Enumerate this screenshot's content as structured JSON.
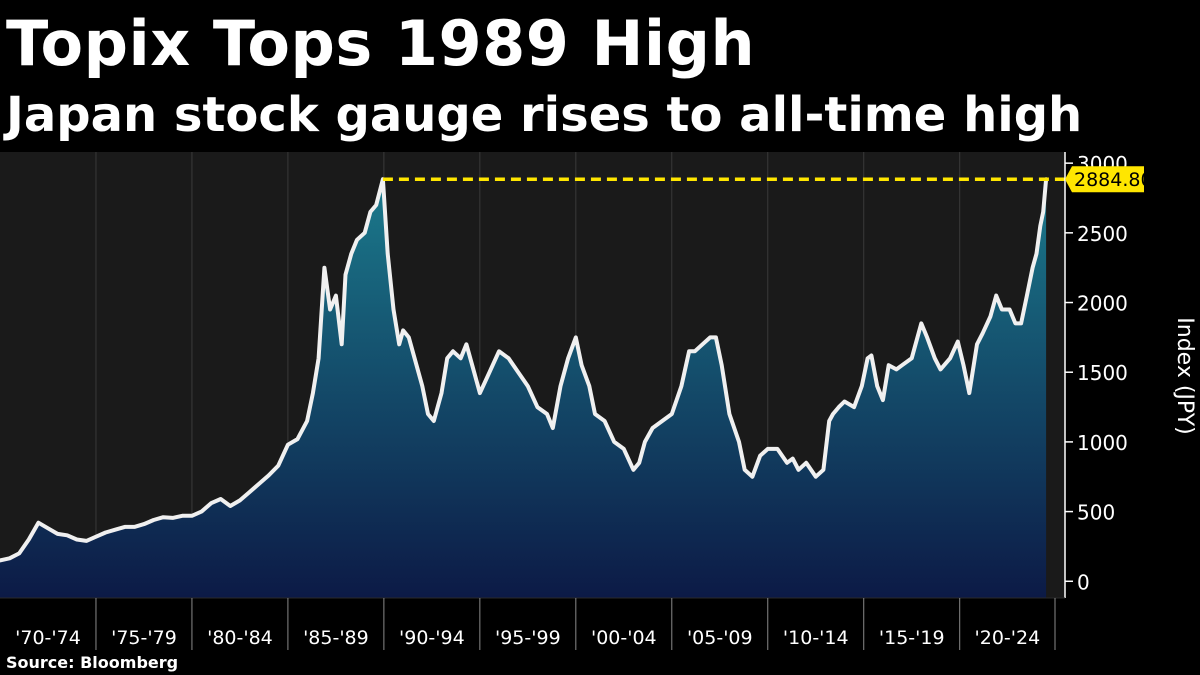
{
  "header": {
    "title": "Topix Tops 1989 High",
    "subtitle": "Japan stock gauge rises to all-time high"
  },
  "footer": {
    "source": "Source: Bloomberg"
  },
  "colors": {
    "background": "#000000",
    "plot_background": "#1a1a1a",
    "line": "#f0f0f0",
    "area_top": "#1b7a8c",
    "area_bottom": "#0c1a46",
    "highlight": "#ffe600",
    "grid": "#555555"
  },
  "chart_data": {
    "type": "area",
    "title": "Topix Tops 1989 High",
    "subtitle": "Japan stock gauge rises to all-time high",
    "xlabel": "",
    "ylabel": "Index (JPY)",
    "ylim": [
      -120,
      3080
    ],
    "xlim": [
      1970.0,
      2024.6
    ],
    "yticks": [
      0,
      500,
      1000,
      1500,
      2000,
      2500,
      3000
    ],
    "ytick_labels": [
      "0",
      "500",
      "1000",
      "1500",
      "2000",
      "2500",
      "3000"
    ],
    "x_categories": [
      "'70-'74",
      "'75-'79",
      "'80-'84",
      "'85-'89",
      "'90-'94",
      "'95-'99",
      "'00-'04",
      "'05-'09",
      "'10-'14",
      "'15-'19",
      "'20-'24"
    ],
    "x_category_start_years": [
      1970,
      1975,
      1980,
      1985,
      1990,
      1995,
      2000,
      2005,
      2010,
      2015,
      2020
    ],
    "reference_line": {
      "value": 2884.8,
      "from_year": 1989.95,
      "label": "2884.80",
      "style": "dashed"
    },
    "last_value_label": "2884.80",
    "series": [
      {
        "name": "Topix",
        "x": [
          1970.0,
          1970.5,
          1971.0,
          1971.5,
          1972.0,
          1972.5,
          1973.0,
          1973.5,
          1974.0,
          1974.5,
          1975.0,
          1975.5,
          1976.0,
          1976.5,
          1977.0,
          1977.5,
          1978.0,
          1978.5,
          1979.0,
          1979.5,
          1980.0,
          1980.5,
          1981.0,
          1981.5,
          1982.0,
          1982.5,
          1983.0,
          1983.5,
          1984.0,
          1984.5,
          1985.0,
          1985.5,
          1986.0,
          1986.3,
          1986.6,
          1986.9,
          1987.2,
          1987.5,
          1987.8,
          1988.0,
          1988.3,
          1988.6,
          1989.0,
          1989.3,
          1989.6,
          1989.95,
          1990.2,
          1990.5,
          1990.8,
          1991.0,
          1991.3,
          1991.6,
          1992.0,
          1992.3,
          1992.6,
          1993.0,
          1993.3,
          1993.6,
          1994.0,
          1994.3,
          1994.6,
          1995.0,
          1995.5,
          1996.0,
          1996.5,
          1997.0,
          1997.5,
          1998.0,
          1998.5,
          1998.8,
          1999.2,
          1999.6,
          2000.0,
          2000.3,
          2000.7,
          2001.0,
          2001.5,
          2002.0,
          2002.5,
          2003.0,
          2003.3,
          2003.6,
          2004.0,
          2004.5,
          2005.0,
          2005.5,
          2005.9,
          2006.2,
          2006.6,
          2007.0,
          2007.3,
          2007.6,
          2008.0,
          2008.5,
          2008.8,
          2009.2,
          2009.6,
          2010.0,
          2010.5,
          2011.0,
          2011.3,
          2011.6,
          2012.0,
          2012.5,
          2012.9,
          2013.2,
          2013.4,
          2013.7,
          2014.0,
          2014.5,
          2014.9,
          2015.2,
          2015.4,
          2015.7,
          2016.0,
          2016.3,
          2016.7,
          2017.0,
          2017.5,
          2018.0,
          2018.3,
          2018.7,
          2019.0,
          2019.5,
          2019.9,
          2020.2,
          2020.5,
          2020.9,
          2021.2,
          2021.6,
          2021.9,
          2022.2,
          2022.6,
          2022.9,
          2023.2,
          2023.5,
          2023.8,
          2024.0,
          2024.2,
          2024.35,
          2024.5
        ],
        "values": [
          150,
          165,
          200,
          300,
          420,
          380,
          340,
          330,
          300,
          290,
          320,
          350,
          370,
          390,
          390,
          410,
          440,
          460,
          455,
          470,
          470,
          500,
          560,
          590,
          540,
          580,
          640,
          700,
          760,
          830,
          980,
          1020,
          1150,
          1350,
          1600,
          2250,
          1950,
          2050,
          1700,
          2200,
          2350,
          2450,
          2500,
          2650,
          2700,
          2884.8,
          2350,
          1950,
          1700,
          1800,
          1750,
          1600,
          1400,
          1200,
          1150,
          1350,
          1600,
          1650,
          1600,
          1700,
          1550,
          1350,
          1500,
          1650,
          1600,
          1500,
          1400,
          1250,
          1200,
          1100,
          1400,
          1600,
          1750,
          1550,
          1400,
          1200,
          1150,
          1000,
          950,
          800,
          850,
          1000,
          1100,
          1150,
          1200,
          1400,
          1650,
          1650,
          1700,
          1750,
          1750,
          1550,
          1200,
          1000,
          800,
          750,
          900,
          950,
          950,
          850,
          880,
          800,
          850,
          750,
          800,
          1150,
          1200,
          1250,
          1290,
          1250,
          1400,
          1600,
          1620,
          1400,
          1300,
          1550,
          1520,
          1550,
          1600,
          1850,
          1750,
          1600,
          1520,
          1600,
          1720,
          1550,
          1350,
          1700,
          1780,
          1900,
          2050,
          1950,
          1950,
          1850,
          1850,
          2050,
          2250,
          2350,
          2550,
          2650,
          2884.8
        ]
      }
    ]
  }
}
